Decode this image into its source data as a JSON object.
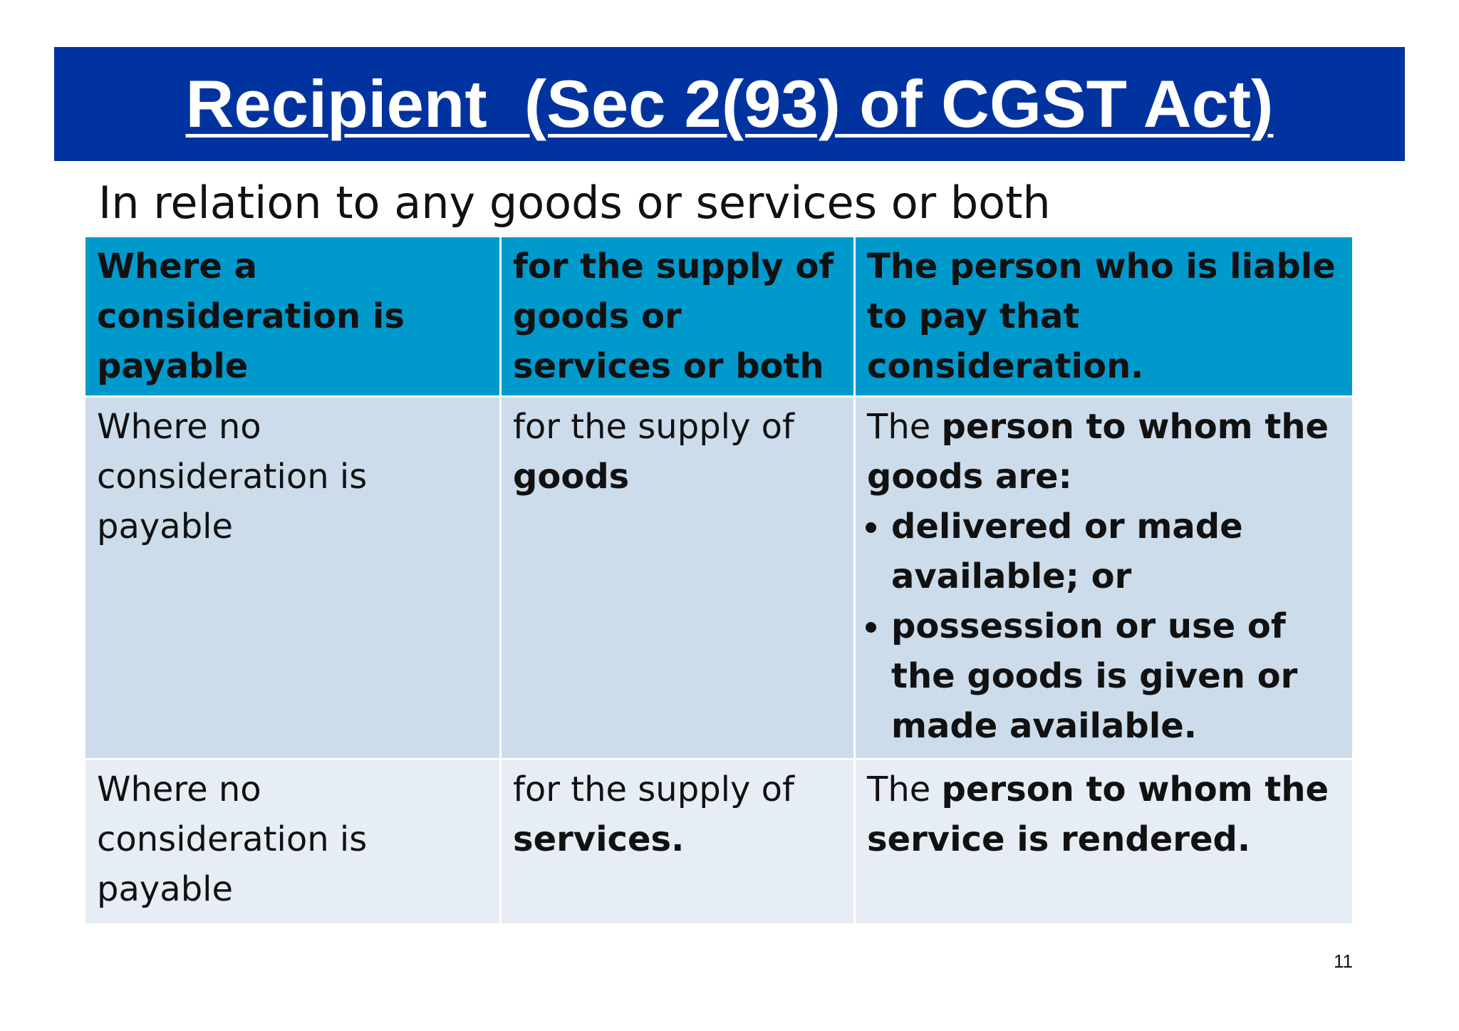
{
  "header": {
    "title": "Recipient  (Sec 2(93) of CGST Act)",
    "subtitle": "In relation to any goods or services or both"
  },
  "table": {
    "columns": [
      "Where a consideration is payable",
      "for the supply of goods or services or  both",
      "The person who is liable to pay that consideration."
    ],
    "rows": [
      [
        {
          "runs": [
            {
              "text": "Where no consideration is payable",
              "bold": false
            }
          ]
        },
        {
          "runs": [
            {
              "text": "for the supply of ",
              "bold": false
            },
            {
              "text": "goods",
              "bold": true
            }
          ]
        },
        {
          "runs": [
            {
              "text": "The ",
              "bold": false
            },
            {
              "text": "person to whom the goods are:",
              "bold": true
            }
          ],
          "bullets": [
            "delivered or made available; or",
            "possession or use of the goods is given or made available."
          ]
        }
      ],
      [
        {
          "runs": [
            {
              "text": "Where no consideration is payable",
              "bold": false
            }
          ]
        },
        {
          "runs": [
            {
              "text": "for the supply of ",
              "bold": false
            },
            {
              "text": "services.",
              "bold": true
            }
          ]
        },
        {
          "runs": [
            {
              "text": "The ",
              "bold": false
            },
            {
              "text": "person to whom the service is rendered.",
              "bold": true
            }
          ]
        }
      ]
    ]
  },
  "footer": {
    "page_number": "11"
  }
}
